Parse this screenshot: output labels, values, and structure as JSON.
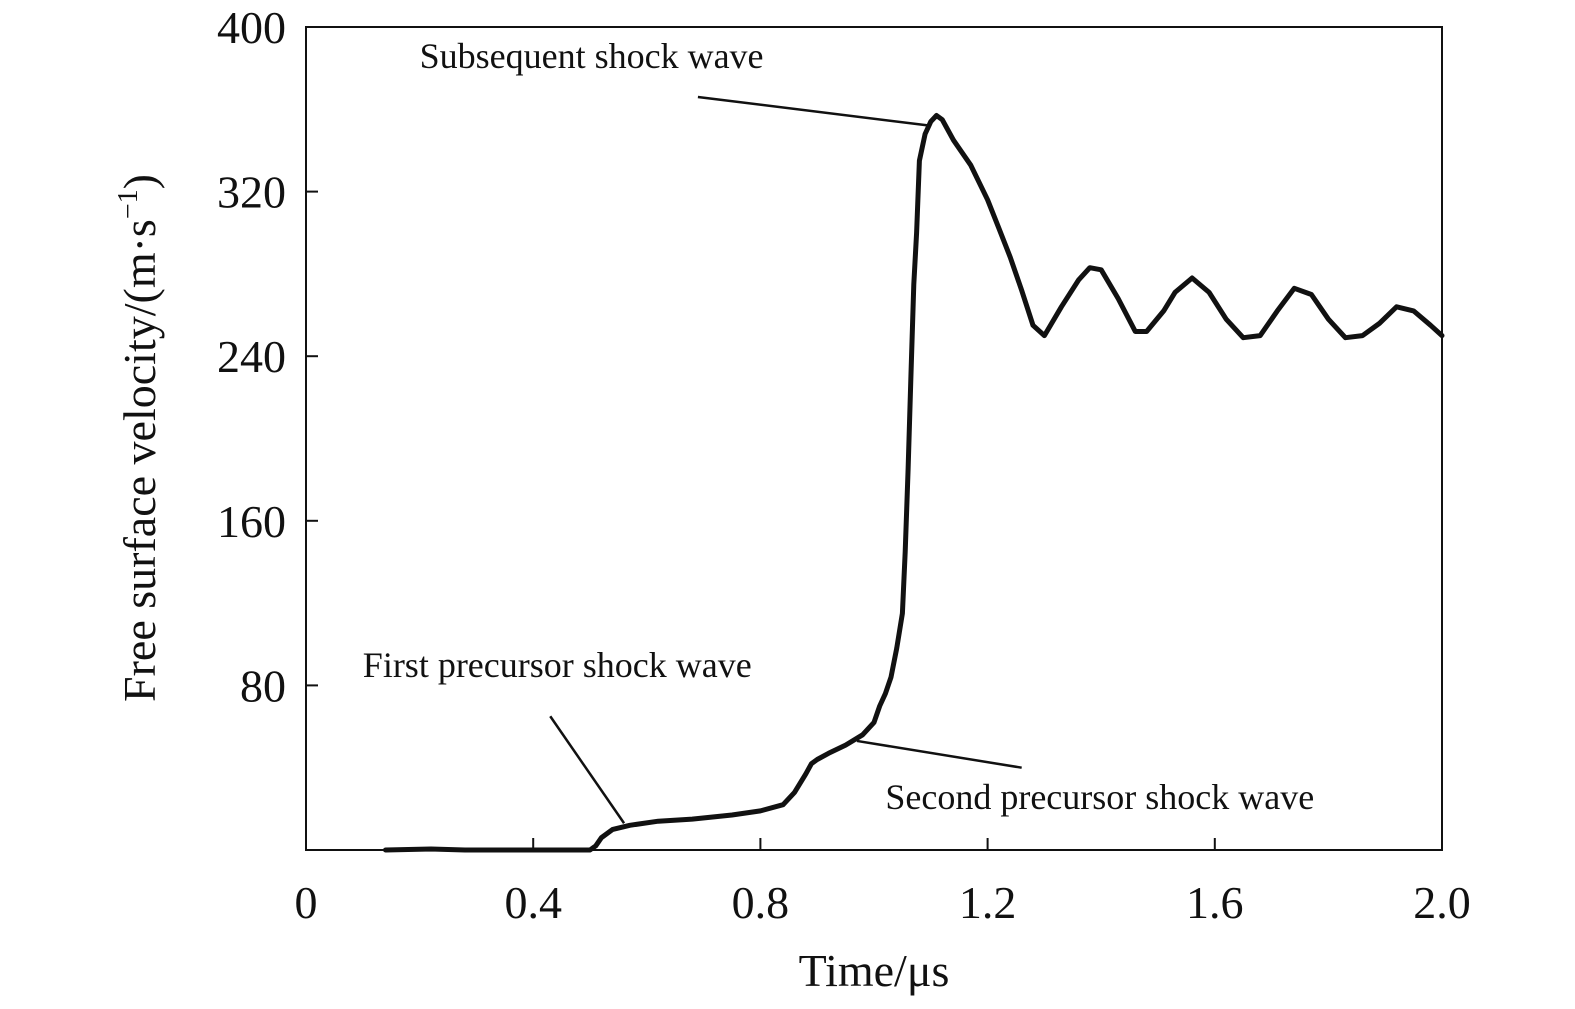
{
  "chart_data": {
    "type": "line",
    "xlabel": "Time/μs",
    "ylabel_main": "Free surface velocity/(m·s",
    "ylabel_sup": "−1",
    "ylabel_end": ")",
    "xlim": [
      0,
      2.0
    ],
    "ylim": [
      0,
      400
    ],
    "x_ticks": [
      {
        "value": 0,
        "label": "0"
      },
      {
        "value": 0.4,
        "label": "0.4"
      },
      {
        "value": 0.8,
        "label": "0.8"
      },
      {
        "value": 1.2,
        "label": "1.2"
      },
      {
        "value": 1.6,
        "label": "1.6"
      },
      {
        "value": 2.0,
        "label": "2.0"
      }
    ],
    "y_ticks": [
      {
        "value": 80,
        "label": "80"
      },
      {
        "value": 160,
        "label": "160"
      },
      {
        "value": 240,
        "label": "240"
      },
      {
        "value": 320,
        "label": "320"
      },
      {
        "value": 400,
        "label": "400"
      }
    ],
    "grid": false,
    "line_color": "#111111",
    "series": [
      {
        "x": [
          0.14,
          0.22,
          0.28,
          0.35,
          0.42,
          0.47,
          0.5,
          0.51,
          0.52,
          0.54,
          0.57,
          0.62,
          0.68,
          0.75,
          0.8,
          0.84,
          0.86,
          0.88,
          0.89,
          0.9,
          0.92,
          0.95,
          0.98,
          1.0,
          1.01,
          1.02,
          1.03,
          1.04,
          1.05,
          1.055,
          1.06,
          1.065,
          1.07,
          1.075,
          1.08,
          1.09,
          1.1,
          1.11,
          1.12,
          1.14,
          1.17,
          1.2,
          1.22,
          1.24,
          1.26,
          1.28,
          1.3,
          1.33,
          1.36,
          1.38,
          1.4,
          1.43,
          1.46,
          1.48,
          1.51,
          1.53,
          1.56,
          1.59,
          1.62,
          1.65,
          1.68,
          1.71,
          1.74,
          1.77,
          1.8,
          1.83,
          1.86,
          1.89,
          1.92,
          1.95,
          1.98,
          2.0
        ],
        "y": [
          0,
          0.5,
          0,
          0,
          0,
          0,
          0,
          2,
          6,
          10,
          12,
          14,
          15,
          17,
          19,
          22,
          28,
          37,
          42,
          44,
          47,
          51,
          56,
          62,
          70,
          76,
          84,
          98,
          115,
          145,
          185,
          230,
          275,
          300,
          335,
          348,
          354,
          357,
          355,
          345,
          333,
          316,
          302,
          288,
          272,
          255,
          250,
          264,
          277,
          283,
          282,
          268,
          252,
          252,
          262,
          271,
          278,
          271,
          258,
          249,
          250,
          262,
          273,
          270,
          258,
          249,
          250,
          256,
          264,
          262,
          255,
          250
        ]
      }
    ],
    "annotations": [
      {
        "text": "Subsequent shock wave",
        "text_x": 0.2,
        "text_y": 380,
        "line_from": [
          0.69,
          366
        ],
        "line_to": [
          1.1,
          352
        ]
      },
      {
        "text": "First precursor shock wave",
        "text_x": 0.1,
        "text_y": 84,
        "line_from": [
          0.43,
          65
        ],
        "line_to": [
          0.56,
          13
        ]
      },
      {
        "text": "Second precursor shock wave",
        "text_x": 1.02,
        "text_y": 20,
        "line_from": [
          1.26,
          40
        ],
        "line_to": [
          0.97,
          53
        ]
      }
    ]
  }
}
